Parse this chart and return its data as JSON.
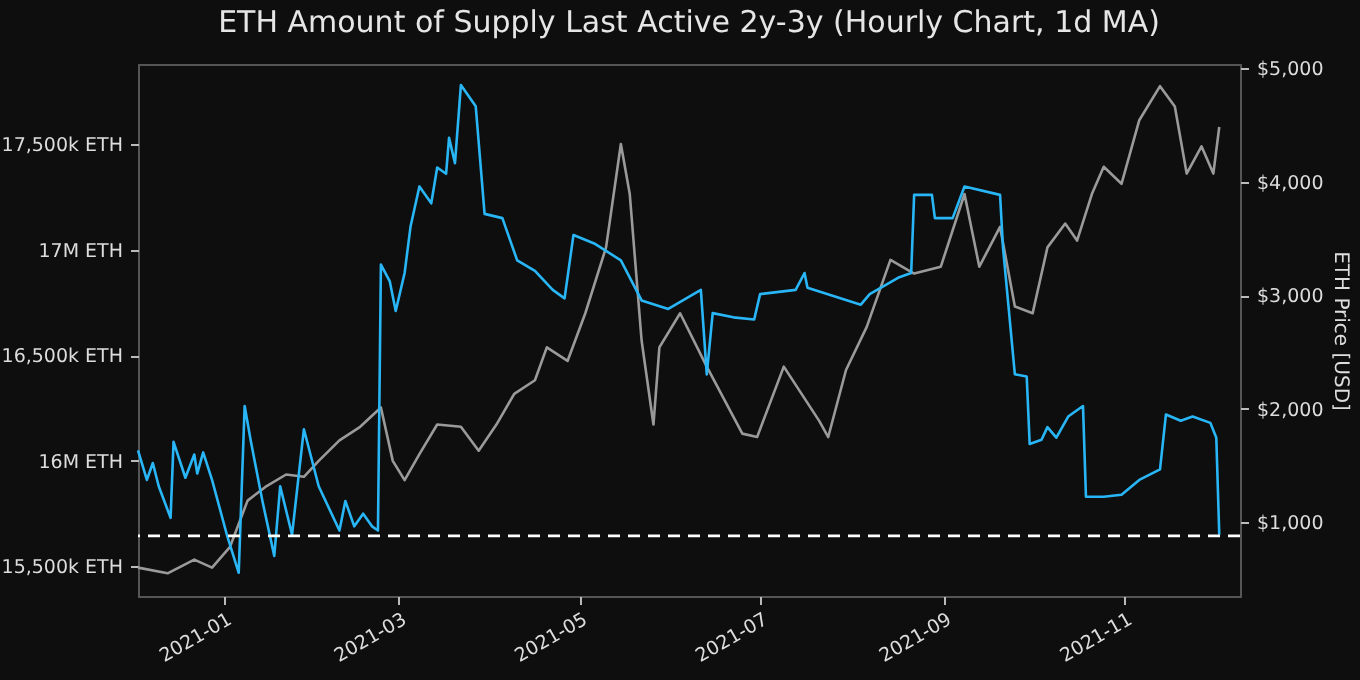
{
  "chart_data": {
    "type": "line",
    "title": "ETH Amount of Supply Last Active 2y-3y (Hourly Chart, 1d MA)",
    "y2label": "ETH Price [USD]",
    "xlim": [
      "2020-12-03",
      "2021-12-10"
    ],
    "xticks": [
      "2021-01",
      "2021-03",
      "2021-05",
      "2021-07",
      "2021-09",
      "2021-11"
    ],
    "ylim": [
      15360000,
      17880000
    ],
    "yticks": [
      {
        "value": 15500000,
        "label": "15,500k ETH"
      },
      {
        "value": 16000000,
        "label": "16M ETH"
      },
      {
        "value": 16500000,
        "label": "16,500k ETH"
      },
      {
        "value": 17000000,
        "label": "17M ETH"
      },
      {
        "value": 17500000,
        "label": "17,500k ETH"
      }
    ],
    "y2lim": [
      350,
      5035
    ],
    "y2ticks": [
      {
        "value": 1000,
        "label": "$1,000"
      },
      {
        "value": 2000,
        "label": "$2,000"
      },
      {
        "value": 3000,
        "label": "$3,000"
      },
      {
        "value": 4000,
        "label": "$4,000"
      },
      {
        "value": 5000,
        "label": "$5,000"
      }
    ],
    "grid": false,
    "line_style": "solid",
    "ref_lines": [
      {
        "axis": "y",
        "value": 15645000,
        "color": "#ffffff",
        "line_style": "dashed"
      }
    ],
    "series": [
      {
        "color": "#9a9a9a",
        "axis": "y2",
        "x": [
          "2020-12-03",
          "2020-12-13",
          "2020-12-22",
          "2020-12-28",
          "2021-01-03",
          "2021-01-09",
          "2021-01-15",
          "2021-01-22",
          "2021-01-28",
          "2021-02-02",
          "2021-02-09",
          "2021-02-16",
          "2021-02-23",
          "2021-02-27",
          "2021-03-03",
          "2021-03-08",
          "2021-03-14",
          "2021-03-22",
          "2021-03-28",
          "2021-04-03",
          "2021-04-09",
          "2021-04-16",
          "2021-04-20",
          "2021-04-27",
          "2021-05-03",
          "2021-05-10",
          "2021-05-15",
          "2021-05-18",
          "2021-05-22",
          "2021-05-26",
          "2021-05-28",
          "2021-06-04",
          "2021-06-13",
          "2021-06-25",
          "2021-06-30",
          "2021-07-09",
          "2021-07-21",
          "2021-07-24",
          "2021-07-30",
          "2021-08-06",
          "2021-08-14",
          "2021-08-22",
          "2021-08-31",
          "2021-09-08",
          "2021-09-13",
          "2021-09-20",
          "2021-09-25",
          "2021-10-01",
          "2021-10-06",
          "2021-10-12",
          "2021-10-16",
          "2021-10-21",
          "2021-10-25",
          "2021-10-31",
          "2021-11-06",
          "2021-11-13",
          "2021-11-18",
          "2021-11-22",
          "2021-11-27",
          "2021-12-01",
          "2021-12-03"
        ],
        "values": [
          600,
          550,
          670,
          600,
          780,
          1190,
          1310,
          1420,
          1400,
          1540,
          1720,
          1840,
          2010,
          1540,
          1370,
          1600,
          1860,
          1840,
          1630,
          1860,
          2130,
          2250,
          2540,
          2420,
          2840,
          3420,
          4330,
          3890,
          2600,
          1860,
          2540,
          2840,
          2370,
          1780,
          1750,
          2370,
          1890,
          1750,
          2340,
          2720,
          3310,
          3190,
          3250,
          3890,
          3250,
          3600,
          2900,
          2840,
          3420,
          3630,
          3480,
          3890,
          4130,
          3980,
          4540,
          4840,
          4660,
          4070,
          4310,
          4070,
          4480
        ]
      },
      {
        "color": "#29b6f6",
        "axis": "y",
        "x": [
          "2020-12-03",
          "2020-12-06",
          "2020-12-08",
          "2020-12-10",
          "2020-12-14",
          "2020-12-15",
          "2020-12-19",
          "2020-12-22",
          "2020-12-23",
          "2020-12-25",
          "2020-12-28",
          "2021-01-02",
          "2021-01-06",
          "2021-01-08",
          "2021-01-10",
          "2021-01-14",
          "2021-01-18",
          "2021-01-20",
          "2021-01-24",
          "2021-01-28",
          "2021-02-02",
          "2021-02-09",
          "2021-02-11",
          "2021-02-14",
          "2021-02-17",
          "2021-02-20",
          "2021-02-22",
          "2021-02-23",
          "2021-02-26",
          "2021-02-28",
          "2021-03-03",
          "2021-03-05",
          "2021-03-08",
          "2021-03-12",
          "2021-03-14",
          "2021-03-17",
          "2021-03-18",
          "2021-03-20",
          "2021-03-22",
          "2021-03-27",
          "2021-03-30",
          "2021-04-05",
          "2021-04-10",
          "2021-04-16",
          "2021-04-22",
          "2021-04-26",
          "2021-04-29",
          "2021-05-06",
          "2021-05-15",
          "2021-05-22",
          "2021-05-31",
          "2021-06-11",
          "2021-06-13",
          "2021-06-15",
          "2021-06-22",
          "2021-06-29",
          "2021-07-01",
          "2021-07-13",
          "2021-07-16",
          "2021-07-17",
          "2021-08-04",
          "2021-08-07",
          "2021-08-17",
          "2021-08-21",
          "2021-08-22",
          "2021-08-28",
          "2021-08-29",
          "2021-09-04",
          "2021-09-08",
          "2021-09-20",
          "2021-09-21",
          "2021-09-25",
          "2021-09-29",
          "2021-09-30",
          "2021-10-04",
          "2021-10-06",
          "2021-10-09",
          "2021-10-13",
          "2021-10-18",
          "2021-10-19",
          "2021-10-25",
          "2021-10-31",
          "2021-11-06",
          "2021-11-13",
          "2021-11-15",
          "2021-11-20",
          "2021-11-24",
          "2021-11-30",
          "2021-12-02",
          "2021-12-03"
        ],
        "values": [
          16050000,
          15910000,
          15990000,
          15880000,
          15730000,
          16090000,
          15920000,
          16030000,
          15940000,
          16040000,
          15910000,
          15650000,
          15470000,
          16260000,
          16100000,
          15810000,
          15550000,
          15880000,
          15650000,
          16150000,
          15880000,
          15670000,
          15810000,
          15690000,
          15750000,
          15690000,
          15670000,
          16930000,
          16850000,
          16710000,
          16890000,
          17110000,
          17300000,
          17220000,
          17390000,
          17360000,
          17530000,
          17410000,
          17780000,
          17680000,
          17170000,
          17150000,
          16950000,
          16900000,
          16810000,
          16770000,
          17070000,
          17030000,
          16950000,
          16760000,
          16720000,
          16810000,
          16410000,
          16700000,
          16680000,
          16670000,
          16790000,
          16810000,
          16890000,
          16820000,
          16740000,
          16790000,
          16870000,
          16890000,
          17260000,
          17260000,
          17150000,
          17150000,
          17300000,
          17260000,
          17010000,
          16410000,
          16400000,
          16080000,
          16100000,
          16160000,
          16110000,
          16210000,
          16260000,
          15830000,
          15830000,
          15840000,
          15910000,
          15960000,
          16220000,
          16190000,
          16210000,
          16180000,
          16110000,
          15650000
        ]
      }
    ]
  }
}
